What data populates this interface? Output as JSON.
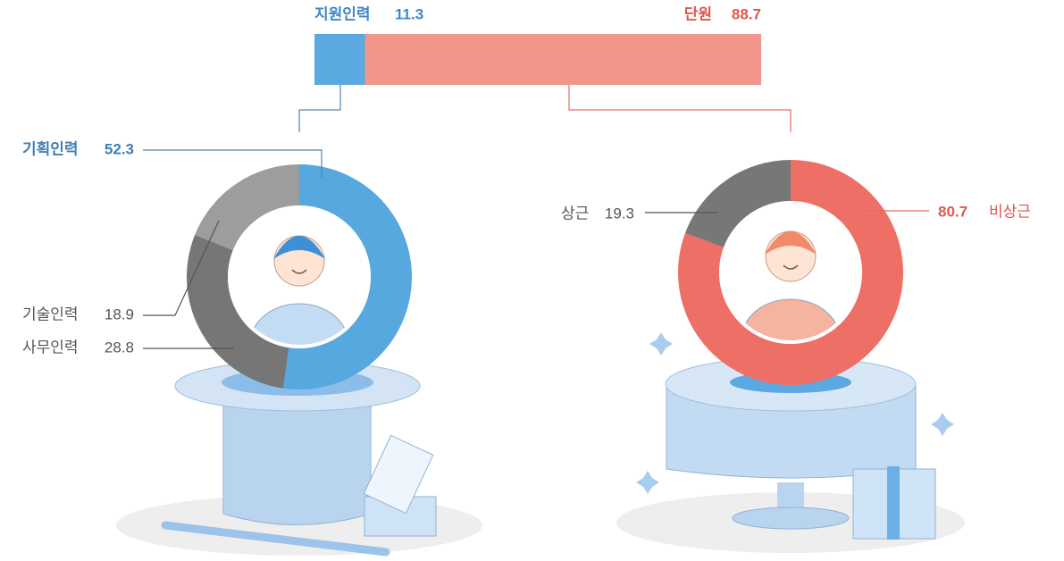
{
  "chart_data": [
    {
      "type": "stacked-bar",
      "xlim": [
        0,
        100
      ],
      "series": [
        {
          "name": "지원인력",
          "color": "#5aa9e0",
          "values": [
            11.3
          ]
        },
        {
          "name": "단원",
          "color": "#f0968a",
          "values": [
            88.7
          ]
        }
      ]
    },
    {
      "type": "donut",
      "categories": [
        "기획인력",
        "사무인력",
        "기술인력"
      ],
      "values": [
        52.3,
        28.8,
        18.9
      ],
      "colors": [
        "#56a8de",
        "#767676",
        "#9d9d9d"
      ]
    },
    {
      "type": "donut",
      "categories": [
        "비상근",
        "상근"
      ],
      "values": [
        80.7,
        19.3
      ],
      "colors": [
        "#ee6f65",
        "#777777"
      ]
    }
  ]
}
